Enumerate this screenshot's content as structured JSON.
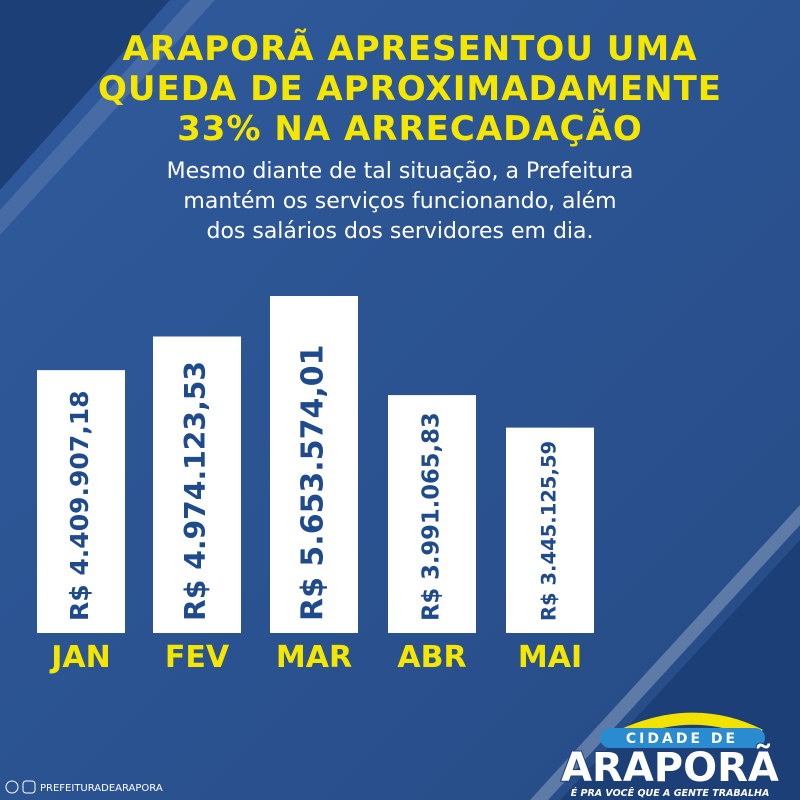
{
  "chart_data": {
    "type": "bar",
    "title": [
      "ARAPORÃ APRESENTOU UMA",
      "QUEDA DE APROXIMADAMENTE",
      "33% NA ARRECADAÇÃO"
    ],
    "subtitle": [
      "Mesmo diante de tal situação, a Prefeitura",
      "mantém os serviços funcionando, além",
      "dos salários dos servidores em dia."
    ],
    "categories": [
      "JAN",
      "FEV",
      "MAR",
      "ABR",
      "MAI"
    ],
    "values": [
      4409907.18,
      4974123.53,
      5653574.01,
      3991065.83,
      3445125.59
    ],
    "value_labels": [
      "R$ 4.409.907,18",
      "R$ 4.974.123,53",
      "R$ 5.653.574,01",
      "R$ 3.991.065,83",
      "R$ 3.445.125,59"
    ],
    "color": "#ffffff"
  },
  "branding": {
    "logo_top": "CIDADE DE",
    "logo_name": "ARAPORÃ",
    "slogan": "É PRA VOCÊ QUE A GENTE TRABALHA",
    "social": "PREFEITURADEARAPORA"
  }
}
